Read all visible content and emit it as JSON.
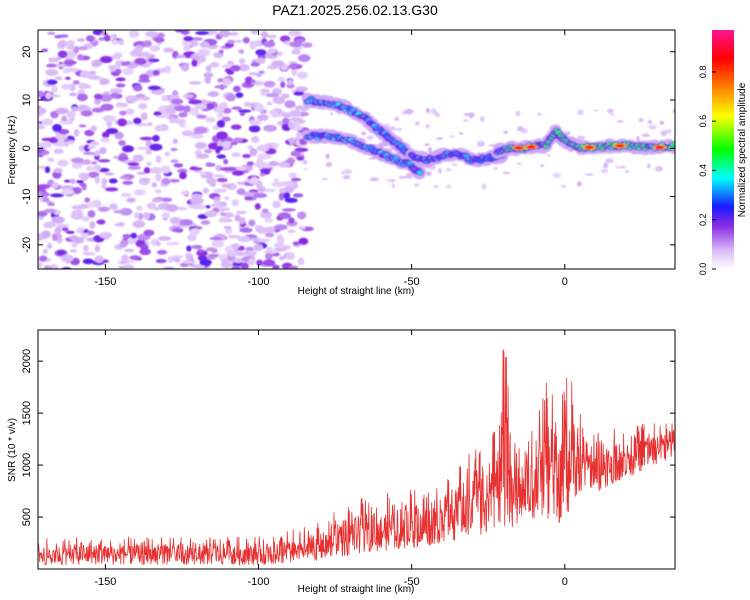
{
  "title": "PAZ1.2025.256.02.13.G30",
  "chart_data": [
    {
      "type": "heatmap",
      "xlabel": "Height of straight line (km)",
      "ylabel": "Frequency (Hz)",
      "xlim": [
        -172,
        36
      ],
      "ylim": [
        -25,
        24.5
      ],
      "x_ticks": [
        "-150",
        "-100",
        "-50",
        "0"
      ],
      "y_ticks": [
        "20",
        "10",
        "0",
        "-10",
        "-20"
      ],
      "x_tick_values": [
        -150,
        -100,
        -50,
        0
      ],
      "y_tick_values": [
        20,
        10,
        0,
        -10,
        -20
      ],
      "colorbar": {
        "label": "Normalized spectral amplitude",
        "range": [
          0,
          0.97
        ],
        "ticks": [
          "0.0",
          "0.2",
          "0.4",
          "0.6",
          "0.8"
        ],
        "tick_values": [
          0.0,
          0.2,
          0.4,
          0.6,
          0.8
        ],
        "colors": [
          "#ffffff",
          "#d8b8f8",
          "#8a2be2",
          "#1a1aff",
          "#00ffff",
          "#00ff00",
          "#ffff00",
          "#ff8000",
          "#ff0000",
          "#ff1493"
        ]
      },
      "noise_region_x": [
        -172,
        -86
      ],
      "signal_branches": [
        {
          "x": [
            -84,
            -78,
            -72,
            -66,
            -62,
            -58,
            -54,
            -50
          ],
          "y": [
            10,
            9.5,
            8.5,
            6.5,
            4.5,
            2.5,
            0.5,
            -1.5
          ]
        },
        {
          "x": [
            -84,
            -78,
            -72,
            -66,
            -60,
            -55,
            -50,
            -47
          ],
          "y": [
            2.5,
            2.5,
            2.0,
            0.5,
            -1.0,
            -2.5,
            -3.5,
            -5.5
          ]
        },
        {
          "x": [
            -50,
            -45,
            -40,
            -35,
            -30,
            -25,
            -20
          ],
          "y": [
            -1.5,
            -2.5,
            -1.5,
            -1.0,
            -2.5,
            -2.0,
            -1.5
          ]
        },
        {
          "x": [
            -22,
            -18,
            -14,
            -10,
            -6,
            -3,
            0,
            5,
            10,
            15,
            20,
            25,
            30,
            36
          ],
          "y": [
            -0.5,
            0.0,
            0.0,
            0.5,
            0.5,
            3.5,
            1.5,
            0.2,
            0.2,
            0.5,
            0.5,
            0.2,
            0.2,
            0.5
          ]
        }
      ]
    },
    {
      "type": "line",
      "xlabel": "Height of straight line (km)",
      "ylabel": "SNR (10 * v/v)",
      "xlim": [
        -172,
        36
      ],
      "ylim": [
        0,
        2300
      ],
      "x_ticks": [
        "-150",
        "-100",
        "-50",
        "0"
      ],
      "y_ticks": [
        "2000",
        "1500",
        "1000",
        "500"
      ],
      "x_tick_values": [
        -150,
        -100,
        -50,
        0
      ],
      "y_tick_values": [
        2000,
        1500,
        1000,
        500
      ],
      "line_color": "#e83030",
      "envelope": {
        "x": [
          -172,
          -150,
          -120,
          -100,
          -90,
          -80,
          -72,
          -65,
          -55,
          -45,
          -35,
          -28,
          -22,
          -20,
          -15,
          -10,
          -5,
          -2,
          0,
          3,
          5,
          8,
          10,
          14,
          18,
          22,
          26,
          30,
          34,
          36
        ],
        "low": [
          40,
          40,
          40,
          40,
          50,
          80,
          120,
          160,
          180,
          220,
          280,
          320,
          380,
          380,
          420,
          460,
          480,
          440,
          440,
          700,
          650,
          800,
          700,
          800,
          850,
          900,
          950,
          1000,
          1050,
          1100
        ],
        "high": [
          300,
          310,
          310,
          320,
          380,
          450,
          620,
          700,
          750,
          800,
          1000,
          1250,
          1450,
          2250,
          1250,
          1400,
          1900,
          1500,
          1950,
          1800,
          1600,
          1300,
          1350,
          1300,
          1400,
          1350,
          1450,
          1400,
          1450,
          1430
        ]
      }
    }
  ]
}
